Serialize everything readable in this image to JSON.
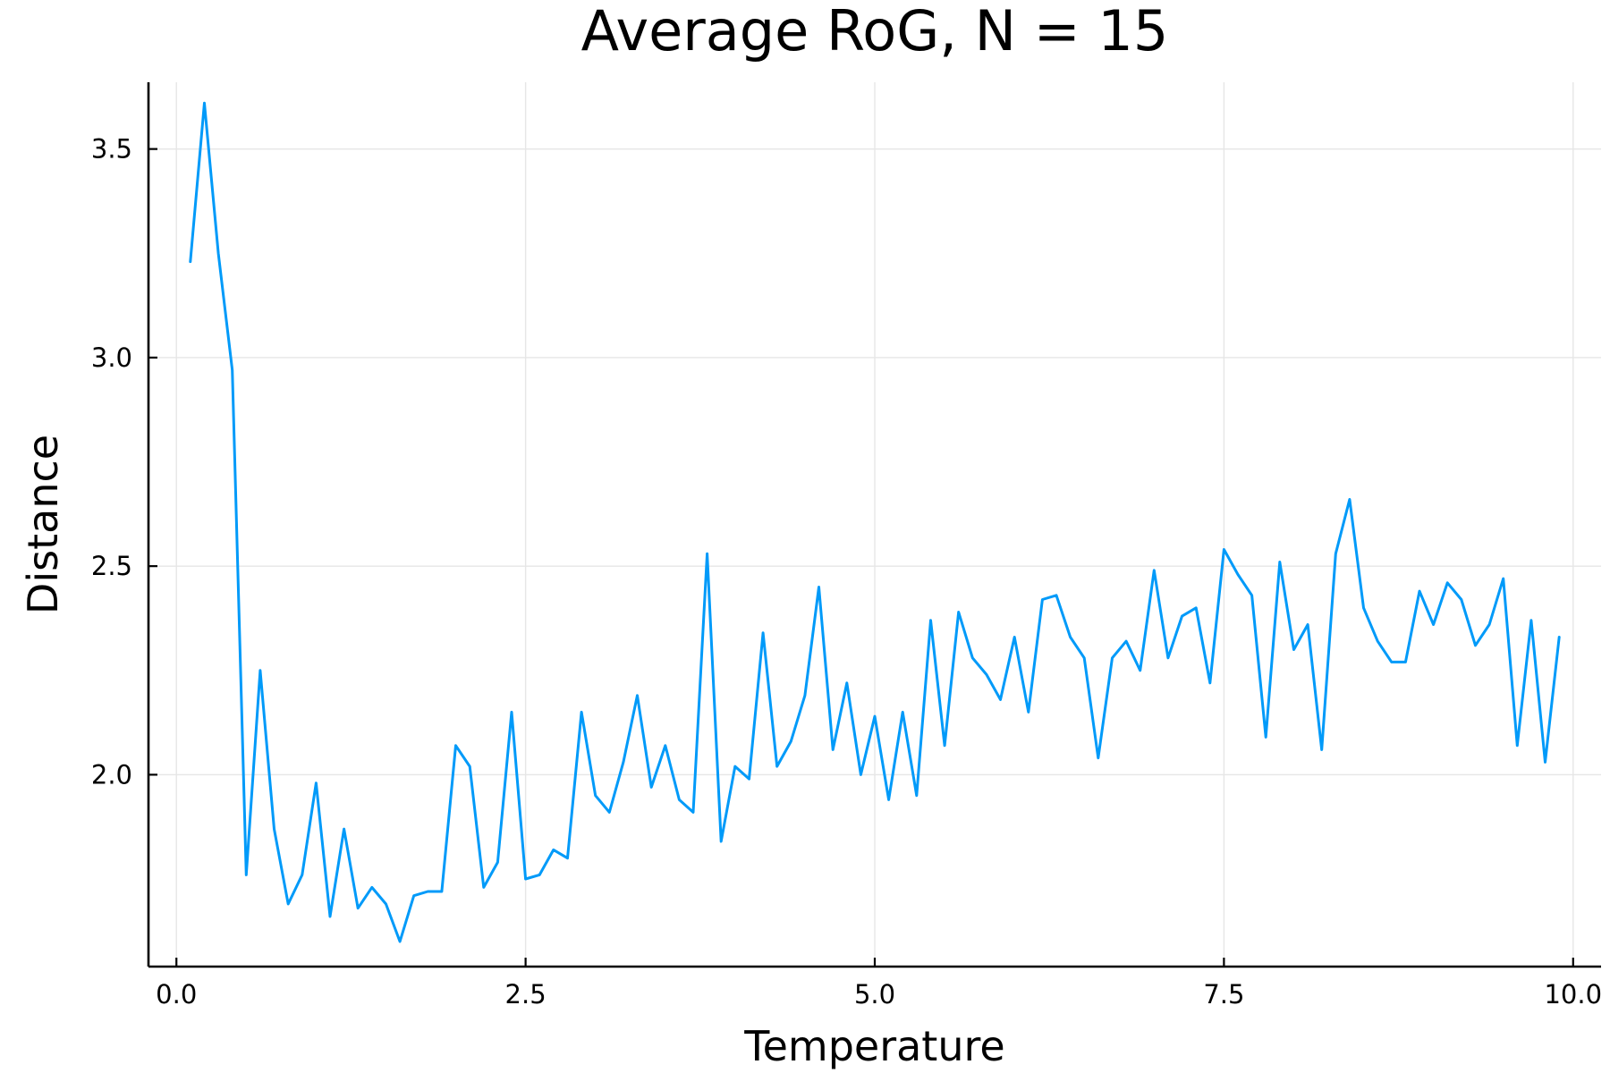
{
  "chart_data": {
    "type": "line",
    "title": "Average RoG, N = 15",
    "xlabel": "Temperature",
    "ylabel": "Distance",
    "xlim": [
      -0.2,
      10.2
    ],
    "ylim": [
      1.54,
      3.66
    ],
    "xticks": [
      0.0,
      2.5,
      5.0,
      7.5,
      10.0
    ],
    "xtick_labels": [
      "0.0",
      "2.5",
      "5.0",
      "7.5",
      "10.0"
    ],
    "yticks": [
      2.0,
      2.5,
      3.0,
      3.5
    ],
    "ytick_labels": [
      "2.0",
      "2.5",
      "3.0",
      "3.5"
    ],
    "grid": true,
    "legend": "none",
    "series": [
      {
        "color": "#009af9",
        "x": [
          0.1,
          0.2,
          0.3,
          0.4,
          0.5,
          0.6,
          0.7,
          0.8,
          0.9,
          1.0,
          1.1,
          1.2,
          1.3,
          1.4,
          1.5,
          1.6,
          1.7,
          1.8,
          1.9,
          2.0,
          2.1,
          2.2,
          2.3,
          2.4,
          2.5,
          2.6,
          2.7,
          2.8,
          2.9,
          3.0,
          3.1,
          3.2,
          3.3,
          3.4,
          3.5,
          3.6,
          3.7,
          3.8,
          3.9,
          4.0,
          4.1,
          4.2,
          4.3,
          4.4,
          4.5,
          4.6,
          4.7,
          4.8,
          4.9,
          5.0,
          5.1,
          5.2,
          5.3,
          5.4,
          5.5,
          5.6,
          5.7,
          5.8,
          5.9,
          6.0,
          6.1,
          6.2,
          6.3,
          6.4,
          6.5,
          6.6,
          6.7,
          6.8,
          6.9,
          7.0,
          7.1,
          7.2,
          7.3,
          7.4,
          7.5,
          7.6,
          7.7,
          7.8,
          7.9,
          8.0,
          8.1,
          8.2,
          8.3,
          8.4,
          8.5,
          8.6,
          8.7,
          8.8,
          8.9,
          9.0,
          9.1,
          9.2,
          9.3,
          9.4,
          9.5,
          9.6,
          9.7,
          9.8,
          9.9
        ],
        "y": [
          3.23,
          3.61,
          3.25,
          2.97,
          1.76,
          2.25,
          1.87,
          1.69,
          1.76,
          1.98,
          1.66,
          1.87,
          1.68,
          1.73,
          1.69,
          1.6,
          1.71,
          1.72,
          1.72,
          2.07,
          2.02,
          1.73,
          1.79,
          2.15,
          1.75,
          1.76,
          1.82,
          1.8,
          2.15,
          1.95,
          1.91,
          2.03,
          2.19,
          1.97,
          2.07,
          1.94,
          1.91,
          2.53,
          1.84,
          2.02,
          1.99,
          2.34,
          2.02,
          2.08,
          2.19,
          2.45,
          2.06,
          2.22,
          2.0,
          2.14,
          1.94,
          2.15,
          1.95,
          2.37,
          2.07,
          2.39,
          2.28,
          2.24,
          2.18,
          2.33,
          2.15,
          2.42,
          2.43,
          2.33,
          2.28,
          2.04,
          2.28,
          2.32,
          2.25,
          2.49,
          2.28,
          2.38,
          2.4,
          2.22,
          2.54,
          2.48,
          2.43,
          2.09,
          2.51,
          2.3,
          2.36,
          2.06,
          2.53,
          2.66,
          2.4,
          2.32,
          2.27,
          2.27,
          2.44,
          2.36,
          2.46,
          2.42,
          2.31,
          2.36,
          2.47,
          2.07,
          2.37,
          2.03,
          2.33
        ]
      }
    ]
  }
}
